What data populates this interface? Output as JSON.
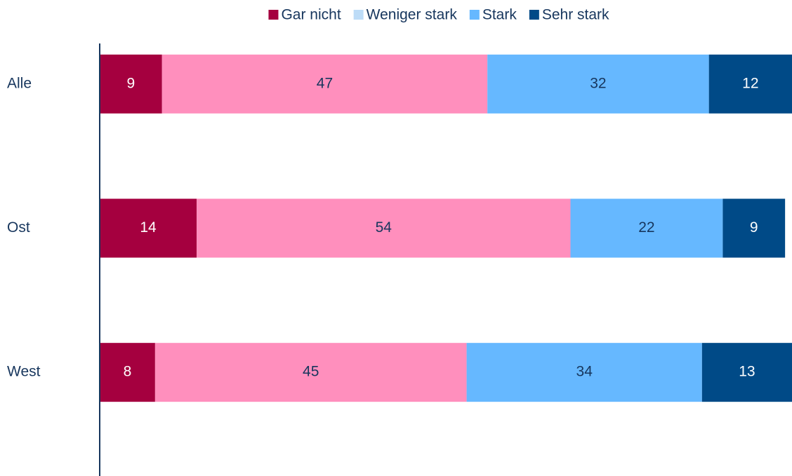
{
  "chart_data": {
    "type": "stacked_bar_horizontal",
    "categories": [
      "Alle",
      "Ost",
      "West"
    ],
    "series": [
      {
        "name": "Gar nicht",
        "color": "#a5003f",
        "legend_color": "#a5003f",
        "label_color": "#ffffff",
        "values": [
          9,
          14,
          8
        ]
      },
      {
        "name": "Weniger stark",
        "color": "#ff8fbd",
        "legend_color": "#bddcf7",
        "label_color": "#17365d",
        "values": [
          47,
          54,
          45
        ]
      },
      {
        "name": "Stark",
        "color": "#66b8ff",
        "legend_color": "#66b8ff",
        "label_color": "#17365d",
        "values": [
          32,
          22,
          34
        ]
      },
      {
        "name": "Sehr stark",
        "color": "#004a87",
        "legend_color": "#004a87",
        "label_color": "#ffffff",
        "values": [
          12,
          9,
          13
        ]
      }
    ],
    "xlim": [
      0,
      100
    ],
    "legend": "top"
  }
}
